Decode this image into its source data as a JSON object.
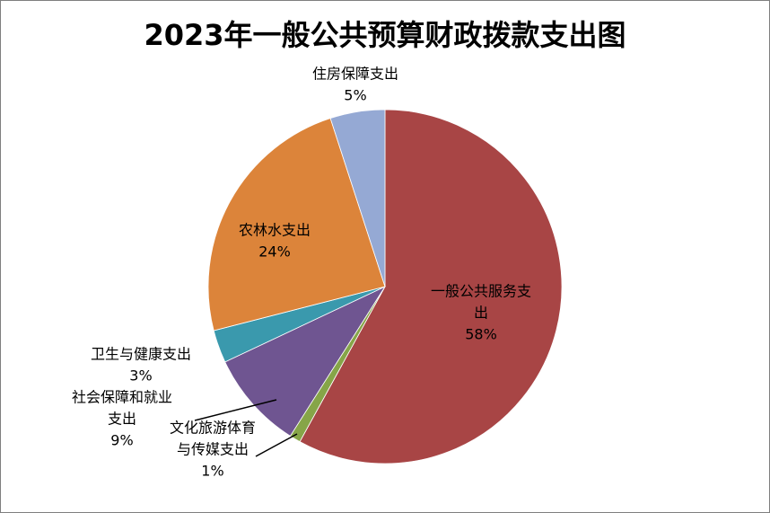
{
  "chart_data": {
    "type": "pie",
    "title": "2023年一般公共预算财政拨款支出图",
    "slices": [
      {
        "label_lines": [
          "一般公共服务支",
          "出"
        ],
        "value": 58,
        "percent_label": "58%",
        "color": "#A84545"
      },
      {
        "label_lines": [
          "文化旅游体育",
          "与传媒支出"
        ],
        "value": 1,
        "percent_label": "1%",
        "color": "#86A548"
      },
      {
        "label_lines": [
          "社会保障和就业",
          "支出"
        ],
        "value": 9,
        "percent_label": "9%",
        "color": "#6F5591"
      },
      {
        "label_lines": [
          "卫生与健康支出"
        ],
        "value": 3,
        "percent_label": "3%",
        "color": "#3A99AD"
      },
      {
        "label_lines": [
          "农林水支出"
        ],
        "value": 24,
        "percent_label": "24%",
        "color": "#DC843A"
      },
      {
        "label_lines": [
          "住房保障支出"
        ],
        "value": 5,
        "percent_label": "5%",
        "color": "#95A9D4"
      }
    ],
    "start_angle_deg": 0,
    "direction": "clockwise",
    "legend": "none"
  }
}
